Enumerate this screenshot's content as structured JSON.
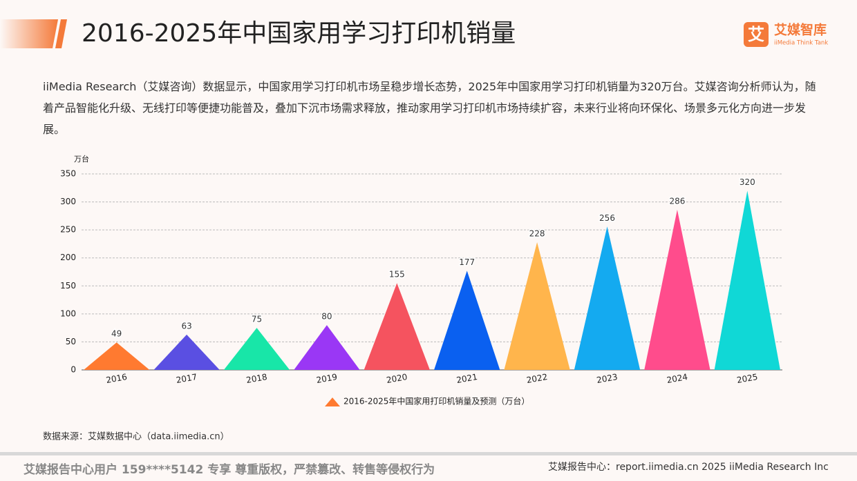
{
  "header": {
    "logo_mark": "艾",
    "logo_text": "艾媒智库",
    "logo_sub": "iiMedia Think Tank"
  },
  "chart_data": {
    "type": "triangle",
    "title": "2016-2025年中国家用学习打印机销量",
    "description": "iiMedia Research（艾媒咨询）数据显示，中国家用学习打印机市场呈稳步增长态势，2025年中国家用学习打印机销量为320万台。艾媒咨询分析师认为，随着产品智能化升级、无线打印等便捷功能普及，叠加下沉市场需求释放，推动家用学习打印机市场持续扩容，未来行业将向环保化、场景多元化方向进一步发展。",
    "y_label": "万台",
    "categories": [
      "2016",
      "2017",
      "2018",
      "2019",
      "2020",
      "2021",
      "2022",
      "2023",
      "2024",
      "2025"
    ],
    "series": [
      {
        "name": "2016-2025年中国家用打印机销量及预测（万台）",
        "color": "#ff7a30",
        "colors": [
          "#ff7a30",
          "#5a4fe2",
          "#18e6a8",
          "#9a37f5",
          "#f5535f",
          "#0a60f0",
          "#ffb54c",
          "#14aaf0",
          "#ff4c8c",
          "#10d8d6"
        ],
        "values": [
          49,
          63,
          75,
          80,
          155,
          177,
          228,
          256,
          286,
          320
        ]
      }
    ],
    "ylim": [
      0,
      350
    ],
    "yticks": [
      0,
      50,
      100,
      150,
      200,
      250,
      300,
      350
    ],
    "grid": true,
    "source": "数据来源：艾媒数据中心（data.iimedia.cn）"
  },
  "footer": {
    "left": "艾媒报告中心用户 159****5142 专享 尊重版权，严禁篡改、转售等侵权行为",
    "right": "艾媒报告中心：report.iimedia.cn   2025 iiMedia Research Inc"
  }
}
